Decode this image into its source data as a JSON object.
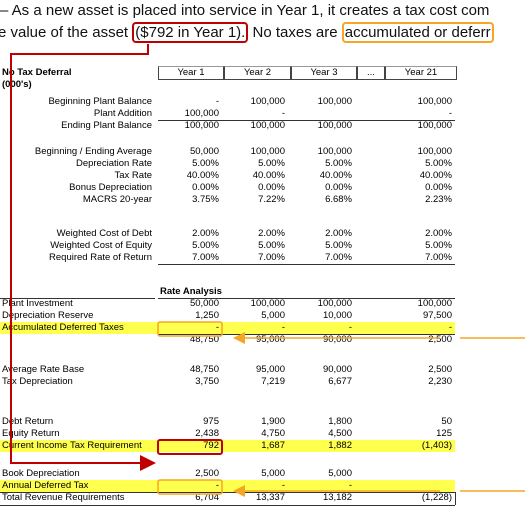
{
  "intro": {
    "line1": "– As a new asset is placed into service in Year 1, it creates a tax cost com",
    "line2_start": "e value of the asset",
    "line2_boxed": "($792 in Year 1).",
    "line2_mid": "No taxes are",
    "line2_boxed2": "accumulated or deferr"
  },
  "table": {
    "title": "No Tax Deferral",
    "unit": "(000's)",
    "columns": [
      "Year 1",
      "Year 2",
      "Year 3",
      "...",
      "Year 21"
    ],
    "section_title": "Rate Analysis",
    "rows": [
      {
        "label": "Beginning Plant Balance",
        "cells": [
          "-",
          "100,000",
          "100,000",
          "100,000"
        ]
      },
      {
        "label": "Plant Addition",
        "cells": [
          "100,000",
          "-",
          null,
          "-"
        ]
      },
      {
        "label": "Ending Plant Balance",
        "cells": [
          "100,000",
          "100,000",
          "100,000",
          "100,000"
        ]
      },
      {
        "label": "Beginning / Ending Average",
        "cells": [
          "50,000",
          "100,000",
          "100,000",
          "100,000"
        ]
      },
      {
        "label": "Depreciation Rate",
        "cells": [
          "5.00%",
          "5.00%",
          "5.00%",
          "5.00%"
        ]
      },
      {
        "label": "Tax Rate",
        "cells": [
          "40.00%",
          "40.00%",
          "40.00%",
          "40.00%"
        ]
      },
      {
        "label": "Bonus Depreciation",
        "cells": [
          "0.00%",
          "0.00%",
          "0.00%",
          "0.00%"
        ]
      },
      {
        "label": "MACRS 20-year",
        "cells": [
          "3.75%",
          "7.22%",
          "6.68%",
          "2.23%"
        ]
      },
      {
        "label": "Weighted Cost of Debt",
        "cells": [
          "2.00%",
          "2.00%",
          "2.00%",
          "2.00%"
        ]
      },
      {
        "label": "Weighted Cost of Equity",
        "cells": [
          "5.00%",
          "5.00%",
          "5.00%",
          "5.00%"
        ]
      },
      {
        "label": "Required Rate of Return",
        "cells": [
          "7.00%",
          "7.00%",
          "7.00%",
          "7.00%"
        ]
      },
      {
        "label": "Plant Investment",
        "cells": [
          "50,000",
          "100,000",
          "100,000",
          "100,000"
        ]
      },
      {
        "label": "Depreciation Reserve",
        "cells": [
          "1,250",
          "5,000",
          "10,000",
          "97,500"
        ]
      },
      {
        "label": "Accumulated Deferred Taxes",
        "cells": [
          "-",
          "-",
          "-",
          "-"
        ]
      },
      {
        "label": null,
        "cells": [
          "48,750",
          "95,000",
          "90,000",
          "2,500"
        ]
      },
      {
        "label": "Average Rate Base",
        "cells": [
          "48,750",
          "95,000",
          "90,000",
          "2,500"
        ]
      },
      {
        "label": "Tax Depreciation",
        "cells": [
          "3,750",
          "7,219",
          "6,677",
          "2,230"
        ]
      },
      {
        "label": "Debt Return",
        "cells": [
          "975",
          "1,900",
          "1,800",
          "50"
        ]
      },
      {
        "label": "Equity Return",
        "cells": [
          "2,438",
          "4,750",
          "4,500",
          "125"
        ]
      },
      {
        "label": "Current Income Tax Requirement",
        "cells": [
          "792",
          "1,687",
          "1,882",
          "(1,403)"
        ]
      },
      {
        "label": "Book Depreciation",
        "cells": [
          "2,500",
          "5,000",
          "5,000",
          null
        ]
      },
      {
        "label": "Annual Deferred Tax",
        "cells": [
          "-",
          "-",
          "-",
          null
        ]
      },
      {
        "label": "Total Revenue Requirements",
        "cells": [
          "6,704",
          "13,337",
          "13,182",
          "(1,228)"
        ]
      }
    ]
  }
}
